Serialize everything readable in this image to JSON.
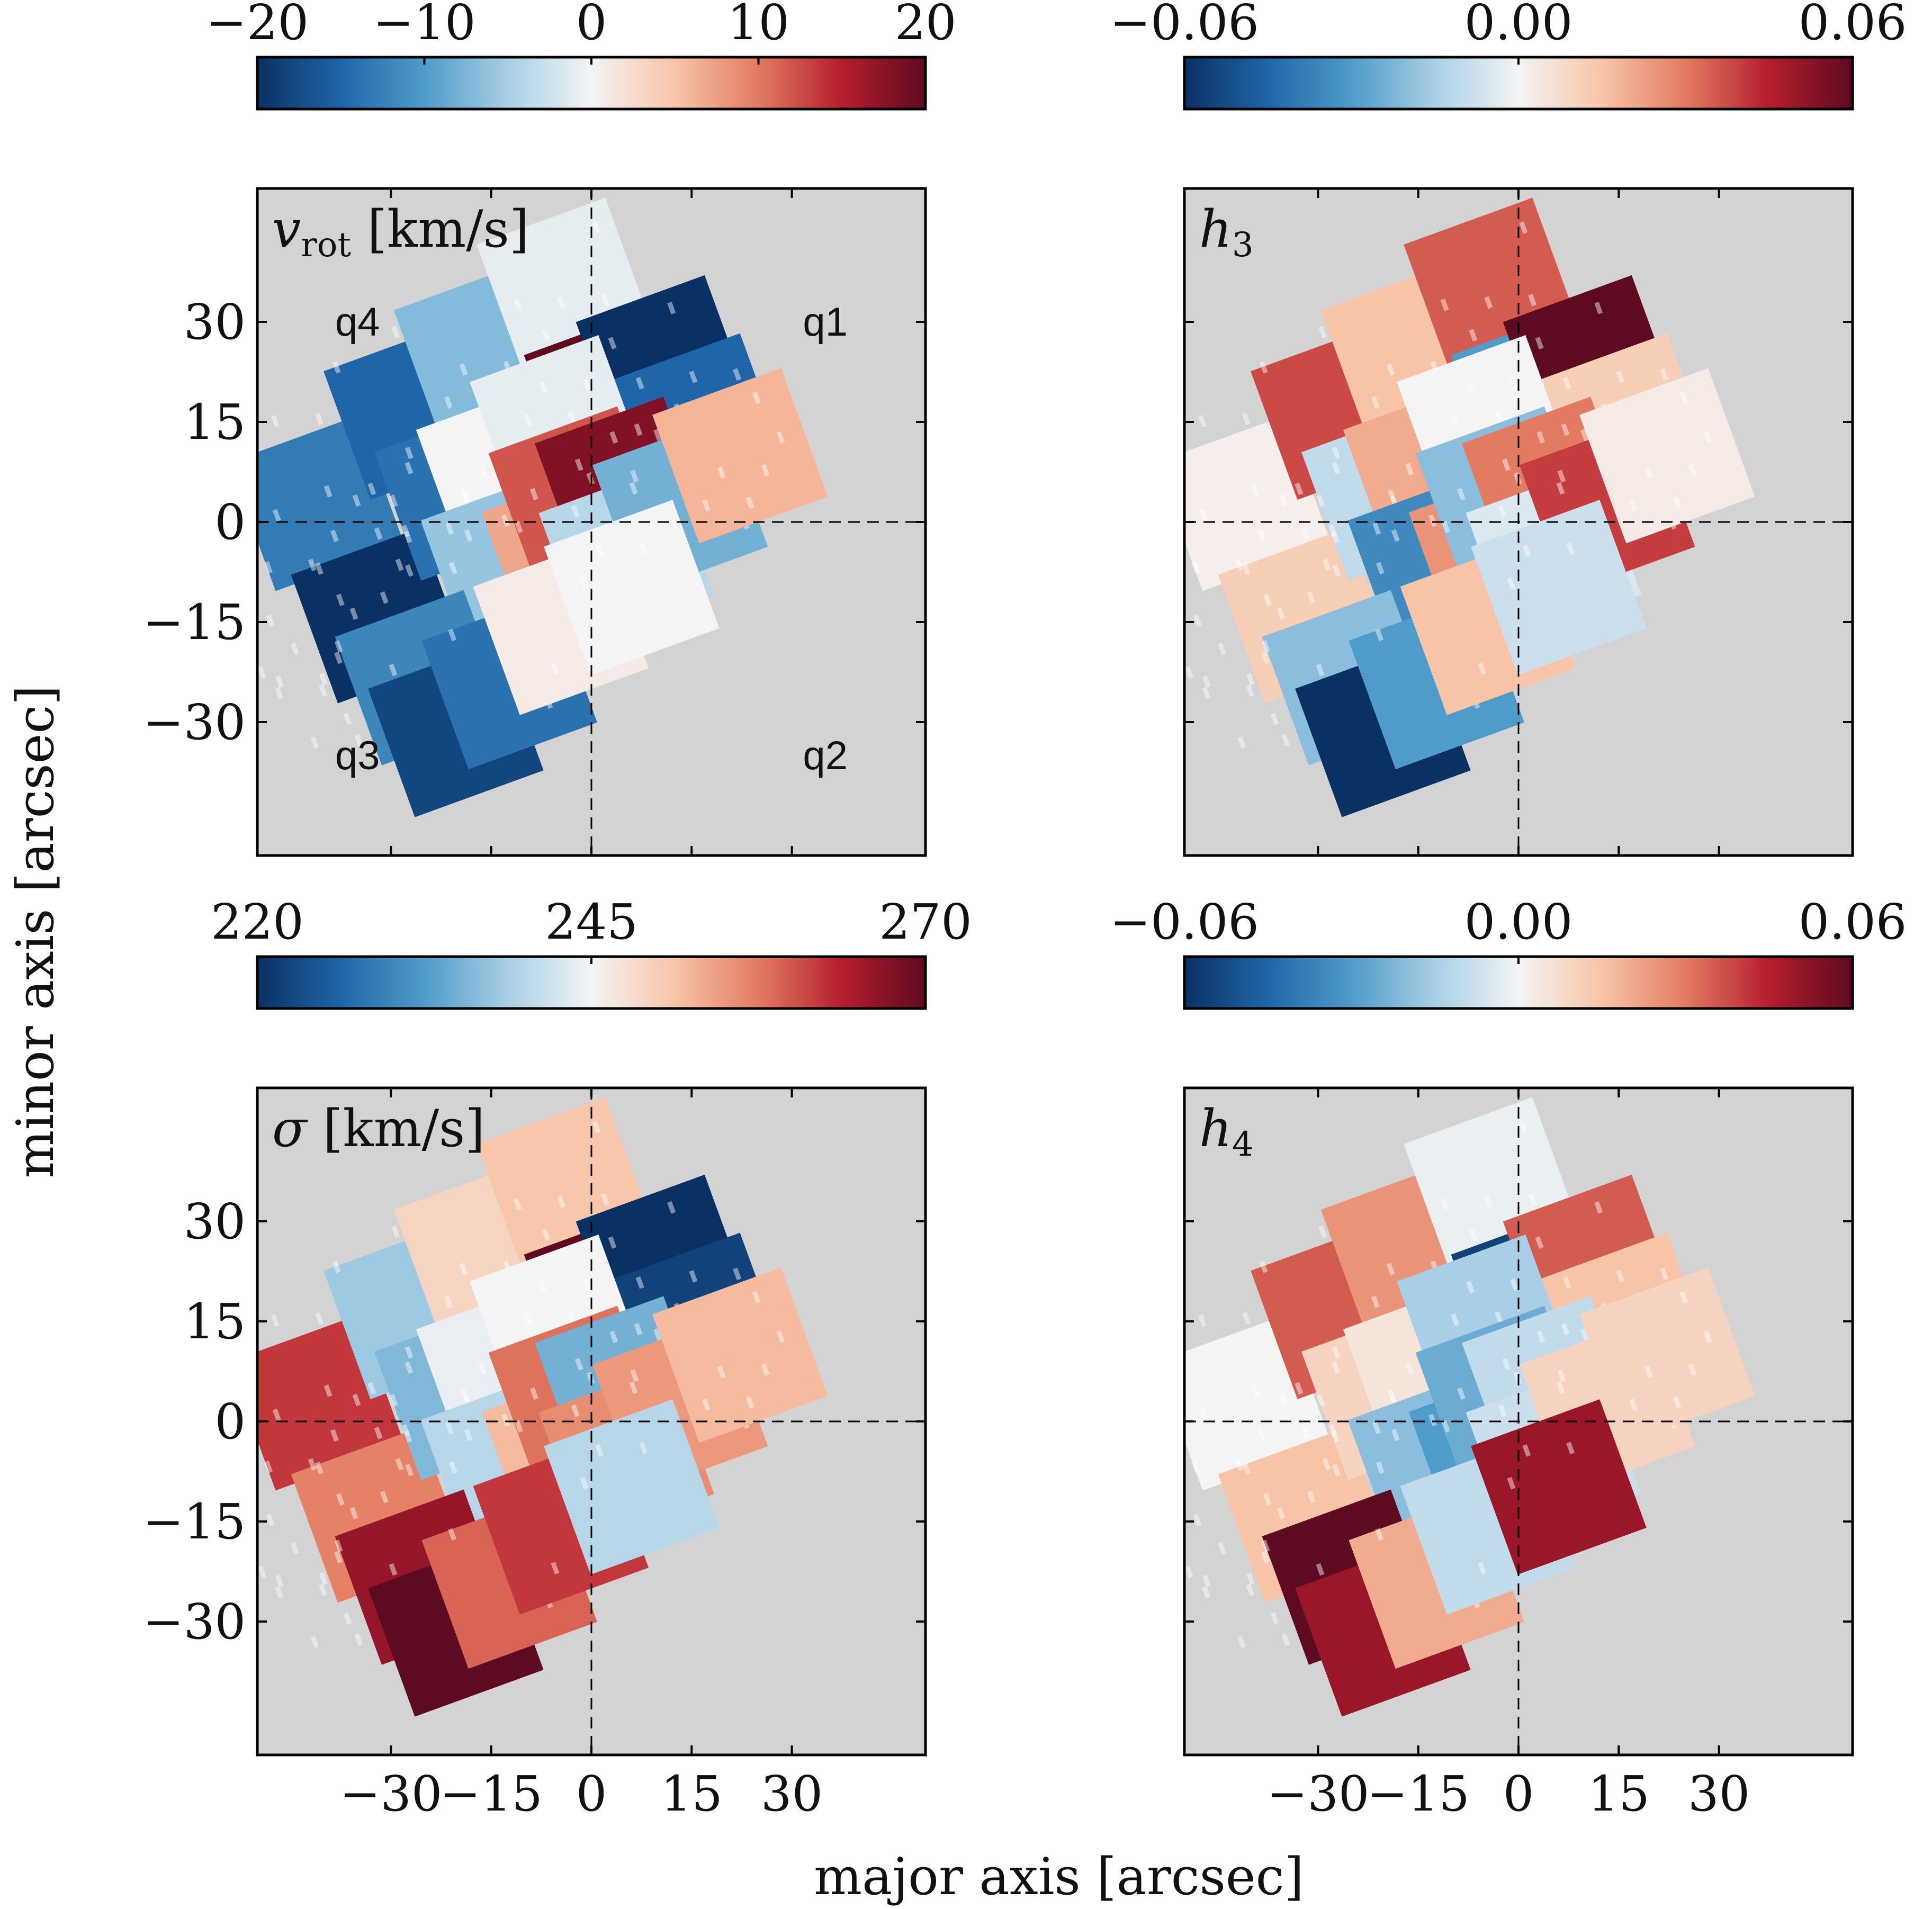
{
  "figure": {
    "xlabel": "major axis [arcsec]",
    "ylabel": "minor axis [arcsec]"
  },
  "colors": {
    "background": "#d3d3d3",
    "colormap": [
      "#0a3163",
      "#1f66a8",
      "#4f9bc9",
      "#a8cfe5",
      "#f4f4f4",
      "#f8c4a7",
      "#e27b61",
      "#b61d2e",
      "#5e0a20"
    ]
  },
  "chart_data": [
    {
      "type": "heatmap",
      "panel": "vrot",
      "label": "v_rot [km/s]",
      "label_main": "v",
      "label_sub": "rot",
      "label_unit": " [km/s]",
      "colorbar": {
        "ticks": [
          "−20",
          "−10",
          "0",
          "10",
          "20"
        ],
        "range": [
          -20,
          20
        ]
      },
      "xlim": [
        -50,
        50
      ],
      "ylim": [
        -50,
        50
      ],
      "xticks": [],
      "yticks": [
        "30",
        "15",
        "0",
        "−15",
        "−30"
      ],
      "quadrant_labels": [
        {
          "text": "q4",
          "x": -35,
          "y": 30
        },
        {
          "text": "q1",
          "x": 35,
          "y": 30
        },
        {
          "text": "q3",
          "x": -35,
          "y": -35
        },
        {
          "text": "q2",
          "x": 35,
          "y": -35
        }
      ],
      "bins": [
        {
          "x": -38,
          "y": 15,
          "v": -13
        },
        {
          "x": -20,
          "y": 23,
          "v": -15
        },
        {
          "x": -7,
          "y": 28,
          "v": -7
        },
        {
          "x": 8,
          "y": 33,
          "v": -1
        },
        {
          "x": 9,
          "y": 15,
          "v": 20
        },
        {
          "x": 18,
          "y": 17,
          "v": -20
        },
        {
          "x": 20,
          "y": 7,
          "v": -15
        },
        {
          "x": -35,
          "y": -4,
          "v": -20
        },
        {
          "x": -17,
          "y": 9,
          "v": -14
        },
        {
          "x": -10,
          "y": 10,
          "v": 0
        },
        {
          "x": 0,
          "y": 14,
          "v": -1
        },
        {
          "x": -14,
          "y": -3,
          "v": -6
        },
        {
          "x": -5,
          "y": -5,
          "v": 7
        },
        {
          "x": -1,
          "y": 3,
          "v": 12
        },
        {
          "x": 6,
          "y": 2,
          "v": 18
        },
        {
          "x": -32,
          "y": -15,
          "v": -12
        },
        {
          "x": -30,
          "y": -24,
          "v": -18
        },
        {
          "x": -20,
          "y": -20,
          "v": -14
        },
        {
          "x": -10,
          "y": -15,
          "v": 1
        },
        {
          "x": 3,
          "y": -8,
          "v": -4
        },
        {
          "x": 13,
          "y": -4,
          "v": -8
        },
        {
          "x": 24,
          "y": 0,
          "v": 6
        },
        {
          "x": 2,
          "y": -13,
          "v": 0
        }
      ]
    },
    {
      "type": "heatmap",
      "panel": "h3",
      "label": "h3",
      "label_main": "h",
      "label_sub": "3",
      "label_unit": "",
      "colorbar": {
        "ticks": [
          "−0.06",
          "0.00",
          "0.06"
        ],
        "range": [
          -0.06,
          0.06
        ]
      },
      "xlim": [
        -50,
        50
      ],
      "ylim": [
        -50,
        50
      ],
      "xticks": [],
      "yticks": [],
      "quadrant_labels": [],
      "bins": [
        {
          "x": -38,
          "y": 15,
          "v": 0.002
        },
        {
          "x": -20,
          "y": 23,
          "v": 0.038
        },
        {
          "x": -7,
          "y": 28,
          "v": 0.015
        },
        {
          "x": 8,
          "y": 33,
          "v": 0.035
        },
        {
          "x": 9,
          "y": 15,
          "v": -0.03
        },
        {
          "x": 18,
          "y": 17,
          "v": 0.06
        },
        {
          "x": 20,
          "y": 7,
          "v": 0.012
        },
        {
          "x": -35,
          "y": -4,
          "v": 0.012
        },
        {
          "x": -17,
          "y": 9,
          "v": -0.01
        },
        {
          "x": -10,
          "y": 10,
          "v": 0.02
        },
        {
          "x": 0,
          "y": 14,
          "v": 0.0
        },
        {
          "x": -14,
          "y": -3,
          "v": -0.035
        },
        {
          "x": -5,
          "y": -5,
          "v": 0.025
        },
        {
          "x": -1,
          "y": 3,
          "v": -0.02
        },
        {
          "x": 6,
          "y": 2,
          "v": 0.03
        },
        {
          "x": -32,
          "y": -15,
          "v": -0.02
        },
        {
          "x": -30,
          "y": -24,
          "v": -0.06
        },
        {
          "x": -20,
          "y": -20,
          "v": -0.03
        },
        {
          "x": -10,
          "y": -15,
          "v": 0.015
        },
        {
          "x": 3,
          "y": -8,
          "v": -0.005
        },
        {
          "x": 13,
          "y": -4,
          "v": 0.04
        },
        {
          "x": 24,
          "y": 0,
          "v": 0.003
        },
        {
          "x": 2,
          "y": -13,
          "v": -0.008
        }
      ]
    },
    {
      "type": "heatmap",
      "panel": "sigma",
      "label": "σ [km/s]",
      "label_main": "σ",
      "label_sub": "",
      "label_unit": " [km/s]",
      "colorbar": {
        "ticks": [
          "220",
          "245",
          "270"
        ],
        "range": [
          220,
          270
        ]
      },
      "xlim": [
        -50,
        50
      ],
      "ylim": [
        -50,
        50
      ],
      "xticks": [
        "−30",
        "−15",
        "0",
        "15",
        "30"
      ],
      "yticks": [
        "30",
        "15",
        "0",
        "−15",
        "−30"
      ],
      "quadrant_labels": [],
      "bins": [
        {
          "x": -38,
          "y": 15,
          "v": 262
        },
        {
          "x": -20,
          "y": 23,
          "v": 238
        },
        {
          "x": -7,
          "y": 28,
          "v": 249
        },
        {
          "x": 8,
          "y": 33,
          "v": 251
        },
        {
          "x": 9,
          "y": 15,
          "v": 270
        },
        {
          "x": 18,
          "y": 17,
          "v": 220
        },
        {
          "x": 20,
          "y": 7,
          "v": 222
        },
        {
          "x": -35,
          "y": -4,
          "v": 257
        },
        {
          "x": -17,
          "y": 9,
          "v": 236
        },
        {
          "x": -10,
          "y": 10,
          "v": 244
        },
        {
          "x": 0,
          "y": 14,
          "v": 245
        },
        {
          "x": -14,
          "y": -3,
          "v": 240
        },
        {
          "x": -5,
          "y": -5,
          "v": 252
        },
        {
          "x": -1,
          "y": 3,
          "v": 258
        },
        {
          "x": 6,
          "y": 2,
          "v": 235
        },
        {
          "x": -32,
          "y": -15,
          "v": 266
        },
        {
          "x": -30,
          "y": -24,
          "v": 270
        },
        {
          "x": -20,
          "y": -20,
          "v": 259
        },
        {
          "x": -10,
          "y": -15,
          "v": 262
        },
        {
          "x": 3,
          "y": -8,
          "v": 256
        },
        {
          "x": 13,
          "y": -4,
          "v": 255
        },
        {
          "x": 24,
          "y": 0,
          "v": 252
        },
        {
          "x": 2,
          "y": -13,
          "v": 240
        }
      ]
    },
    {
      "type": "heatmap",
      "panel": "h4",
      "label": "h4",
      "label_main": "h",
      "label_sub": "4",
      "label_unit": "",
      "colorbar": {
        "ticks": [
          "−0.06",
          "0.00",
          "0.06"
        ],
        "range": [
          -0.06,
          0.06
        ]
      },
      "xlim": [
        -50,
        50
      ],
      "ylim": [
        -50,
        50
      ],
      "xticks": [
        "−30",
        "−15",
        "0",
        "15",
        "30"
      ],
      "yticks": [],
      "quadrant_labels": [],
      "bins": [
        {
          "x": -38,
          "y": 15,
          "v": 0.0
        },
        {
          "x": -20,
          "y": 23,
          "v": 0.035
        },
        {
          "x": -7,
          "y": 28,
          "v": 0.025
        },
        {
          "x": 8,
          "y": 33,
          "v": -0.002
        },
        {
          "x": 9,
          "y": 15,
          "v": -0.055
        },
        {
          "x": 18,
          "y": 17,
          "v": 0.035
        },
        {
          "x": 20,
          "y": 7,
          "v": 0.015
        },
        {
          "x": -35,
          "y": -4,
          "v": 0.015
        },
        {
          "x": -17,
          "y": 9,
          "v": 0.01
        },
        {
          "x": -10,
          "y": 10,
          "v": 0.005
        },
        {
          "x": 0,
          "y": 14,
          "v": -0.015
        },
        {
          "x": -14,
          "y": -3,
          "v": -0.02
        },
        {
          "x": -5,
          "y": -5,
          "v": -0.03
        },
        {
          "x": -1,
          "y": 3,
          "v": -0.025
        },
        {
          "x": 6,
          "y": 2,
          "v": -0.01
        },
        {
          "x": -32,
          "y": -15,
          "v": 0.06
        },
        {
          "x": -30,
          "y": -24,
          "v": 0.05
        },
        {
          "x": -20,
          "y": -20,
          "v": 0.02
        },
        {
          "x": -10,
          "y": -15,
          "v": -0.01
        },
        {
          "x": 3,
          "y": -8,
          "v": -0.008
        },
        {
          "x": 13,
          "y": -4,
          "v": 0.01
        },
        {
          "x": 24,
          "y": 0,
          "v": 0.01
        },
        {
          "x": 2,
          "y": -13,
          "v": 0.05
        }
      ]
    }
  ]
}
